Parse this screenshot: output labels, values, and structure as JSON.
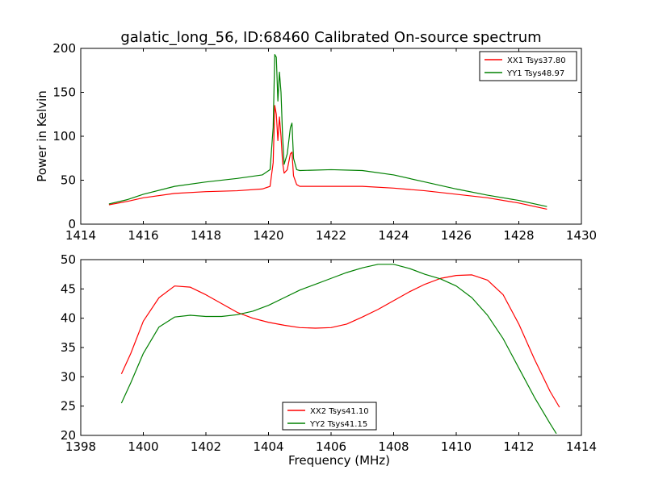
{
  "figure": {
    "title": "galatic_long_56, ID:68460 Calibrated On-source spectrum",
    "background": "#ffffff"
  },
  "chart_data": [
    {
      "type": "line",
      "title": "galatic_long_56, ID:68460 Calibrated On-source spectrum",
      "xlabel": "",
      "ylabel": "Power in Kelvin",
      "xlim": [
        1414,
        1430
      ],
      "ylim": [
        0,
        200
      ],
      "xticks": [
        1414,
        1416,
        1418,
        1420,
        1422,
        1424,
        1426,
        1428,
        1430
      ],
      "yticks": [
        0,
        50,
        100,
        150,
        200
      ],
      "grid": false,
      "legend_position": "top-right",
      "series": [
        {
          "name": "XX1 Tsys37.80",
          "color": "#ff0000",
          "x": [
            1414.9,
            1415.5,
            1416,
            1417,
            1418,
            1419,
            1419.8,
            1420.05,
            1420.15,
            1420.2,
            1420.25,
            1420.3,
            1420.35,
            1420.4,
            1420.45,
            1420.5,
            1420.6,
            1420.7,
            1420.75,
            1420.8,
            1420.9,
            1421,
            1422,
            1423,
            1424,
            1425,
            1426,
            1427,
            1428,
            1428.9
          ],
          "y": [
            22,
            26,
            30,
            35,
            37,
            38,
            40,
            43,
            70,
            135,
            125,
            95,
            122,
            100,
            70,
            58,
            62,
            80,
            82,
            55,
            45,
            43,
            43,
            43,
            41,
            38,
            34,
            30,
            24,
            17
          ]
        },
        {
          "name": "YY1 Tsys48.97",
          "color": "#008000",
          "x": [
            1414.9,
            1415.5,
            1416,
            1417,
            1418,
            1419,
            1419.8,
            1420.05,
            1420.15,
            1420.2,
            1420.25,
            1420.3,
            1420.35,
            1420.4,
            1420.45,
            1420.5,
            1420.6,
            1420.7,
            1420.75,
            1420.8,
            1420.9,
            1421,
            1422,
            1423,
            1424,
            1425,
            1426,
            1427,
            1428,
            1428.9
          ],
          "y": [
            23,
            28,
            34,
            43,
            48,
            52,
            56,
            62,
            110,
            193,
            190,
            140,
            173,
            150,
            100,
            68,
            80,
            110,
            115,
            75,
            62,
            61,
            62,
            61,
            56,
            48,
            40,
            33,
            27,
            20
          ]
        }
      ]
    },
    {
      "type": "line",
      "title": "",
      "xlabel": "Frequency (MHz)",
      "ylabel": "",
      "xlim": [
        1398,
        1414
      ],
      "ylim": [
        20,
        50
      ],
      "xticks": [
        1398,
        1400,
        1402,
        1404,
        1406,
        1408,
        1410,
        1412,
        1414
      ],
      "yticks": [
        20,
        25,
        30,
        35,
        40,
        45,
        50
      ],
      "grid": false,
      "legend_position": "bottom-center",
      "series": [
        {
          "name": "XX2 Tsys41.10",
          "color": "#ff0000",
          "x": [
            1399.3,
            1399.6,
            1400,
            1400.5,
            1401,
            1401.5,
            1402,
            1402.5,
            1403,
            1403.5,
            1404,
            1404.5,
            1405,
            1405.5,
            1406,
            1406.5,
            1407,
            1407.5,
            1408,
            1408.5,
            1409,
            1409.5,
            1410,
            1410.5,
            1411,
            1411.5,
            1412,
            1412.5,
            1413,
            1413.3
          ],
          "y": [
            30.5,
            34,
            39.5,
            43.5,
            45.5,
            45.3,
            44,
            42.5,
            41,
            40,
            39.3,
            38.8,
            38.4,
            38.3,
            38.4,
            39,
            40.2,
            41.5,
            43,
            44.5,
            45.8,
            46.8,
            47.3,
            47.4,
            46.5,
            44,
            39,
            33,
            27.5,
            24.8
          ]
        },
        {
          "name": "YY2 Tsys41.15",
          "color": "#008000",
          "x": [
            1399.3,
            1399.6,
            1400,
            1400.5,
            1401,
            1401.5,
            1402,
            1402.5,
            1403,
            1403.5,
            1404,
            1404.5,
            1405,
            1405.5,
            1406,
            1406.5,
            1407,
            1407.5,
            1408,
            1408.5,
            1409,
            1409.5,
            1410,
            1410.5,
            1411,
            1411.5,
            1412,
            1412.5,
            1413,
            1413.2
          ],
          "y": [
            25.5,
            29,
            34,
            38.5,
            40.2,
            40.5,
            40.3,
            40.3,
            40.6,
            41.2,
            42.2,
            43.5,
            44.8,
            45.8,
            46.8,
            47.8,
            48.6,
            49.2,
            49.2,
            48.5,
            47.5,
            46.7,
            45.5,
            43.5,
            40.5,
            36.5,
            31.5,
            26.5,
            22,
            20.3
          ]
        }
      ]
    }
  ]
}
